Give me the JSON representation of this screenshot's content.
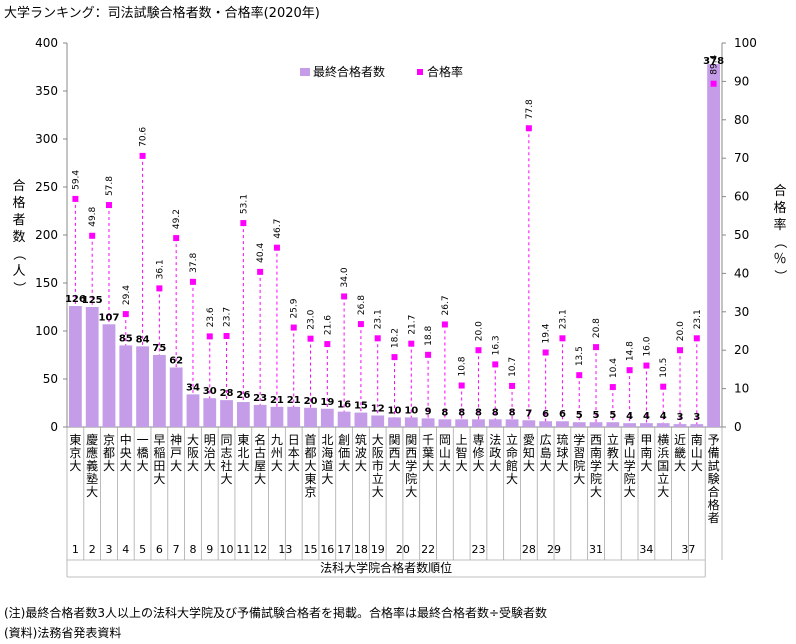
{
  "title": "大学ランキング：司法試験合格者数・合格率(2020年)",
  "notes": [
    "(注)最終合格者数3人以上の法科大学院及び予備試験合格者を掲載。合格率は最終合格者数÷受験者数",
    "(資料)法務省発表資料"
  ],
  "colors": {
    "bar": "#c49ce8",
    "rate": "#ff00ff",
    "axis": "#888888"
  },
  "chart_data": {
    "type": "bar",
    "title": "大学ランキング：司法試験合格者数・合格率(2020年)",
    "ylabel": "合格者数（人）",
    "y2label": "合格率（％）",
    "xlabel": "法科大学院合格者数順位",
    "ylim": [
      0,
      400
    ],
    "y2lim": [
      0,
      100
    ],
    "yticks": [
      0,
      50,
      100,
      150,
      200,
      250,
      300,
      350,
      400
    ],
    "y2ticks": [
      0,
      10,
      20,
      30,
      40,
      50,
      60,
      70,
      80,
      90,
      100
    ],
    "legend_position": "top-right",
    "categories": [
      "東京大",
      "慶應義塾大",
      "京都大",
      "中央大",
      "一橋大",
      "早稲田大",
      "神戸大",
      "大阪大",
      "明治大",
      "同志社大",
      "東北大",
      "名古屋大",
      "九州大",
      "日本大",
      "首都大東京",
      "北海道大",
      "創価大",
      "筑波大",
      "大阪市立大",
      "関西大",
      "関西学院大",
      "千葉大",
      "岡山大",
      "上智大",
      "専修大",
      "法政大",
      "立命館大",
      "愛知大",
      "広島大",
      "琉球大",
      "学習院大",
      "西南学院大",
      "立教大",
      "青山学院大",
      "甲南大",
      "横浜国立大",
      "近畿大",
      "南山大",
      "予備試験合格者"
    ],
    "series": [
      {
        "name": "最終合格者数",
        "type": "bar",
        "axis": "left",
        "values": [
          126,
          125,
          107,
          85,
          84,
          75,
          62,
          34,
          30,
          28,
          26,
          23,
          21,
          21,
          20,
          19,
          16,
          15,
          12,
          10,
          10,
          9,
          8,
          8,
          8,
          8,
          8,
          7,
          6,
          6,
          5,
          5,
          5,
          4,
          4,
          4,
          3,
          3,
          378
        ]
      },
      {
        "name": "合格率",
        "type": "scatter",
        "axis": "right",
        "values": [
          59.4,
          49.8,
          57.8,
          29.4,
          70.6,
          36.1,
          49.2,
          37.8,
          23.6,
          23.7,
          53.1,
          40.4,
          46.7,
          25.9,
          23.0,
          21.6,
          34.0,
          26.8,
          23.1,
          18.2,
          21.7,
          18.8,
          26.7,
          10.8,
          20.0,
          16.3,
          10.7,
          77.8,
          19.4,
          23.1,
          13.5,
          20.8,
          10.4,
          14.8,
          16.0,
          10.5,
          20.0,
          23.1,
          89.4
        ]
      }
    ],
    "rank_groups": [
      {
        "label": "1",
        "from": 0,
        "to": 0
      },
      {
        "label": "2",
        "from": 1,
        "to": 1
      },
      {
        "label": "3",
        "from": 2,
        "to": 2
      },
      {
        "label": "4",
        "from": 3,
        "to": 3
      },
      {
        "label": "5",
        "from": 4,
        "to": 4
      },
      {
        "label": "6",
        "from": 5,
        "to": 5
      },
      {
        "label": "7",
        "from": 6,
        "to": 6
      },
      {
        "label": "8",
        "from": 7,
        "to": 7
      },
      {
        "label": "9",
        "from": 8,
        "to": 8
      },
      {
        "label": "10",
        "from": 9,
        "to": 9
      },
      {
        "label": "11",
        "from": 10,
        "to": 10
      },
      {
        "label": "12",
        "from": 11,
        "to": 11
      },
      {
        "label": "13",
        "from": 12,
        "to": 13
      },
      {
        "label": "15",
        "from": 14,
        "to": 14
      },
      {
        "label": "16",
        "from": 15,
        "to": 15
      },
      {
        "label": "17",
        "from": 16,
        "to": 16
      },
      {
        "label": "18",
        "from": 17,
        "to": 17
      },
      {
        "label": "19",
        "from": 18,
        "to": 18
      },
      {
        "label": "20",
        "from": 19,
        "to": 20
      },
      {
        "label": "22",
        "from": 21,
        "to": 21
      },
      {
        "label": "23",
        "from": 22,
        "to": 26
      },
      {
        "label": "28",
        "from": 27,
        "to": 27
      },
      {
        "label": "29",
        "from": 28,
        "to": 29
      },
      {
        "label": "31",
        "from": 30,
        "to": 32
      },
      {
        "label": "34",
        "from": 33,
        "to": 35
      },
      {
        "label": "37",
        "from": 36,
        "to": 37
      }
    ]
  }
}
